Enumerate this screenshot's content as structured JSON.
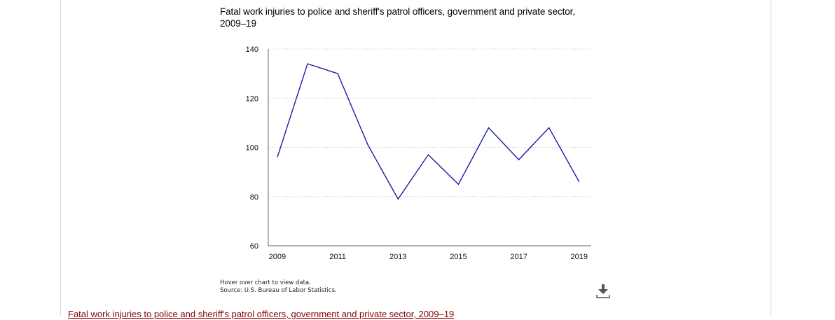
{
  "chart_data": {
    "type": "line",
    "title": "Fatal work injuries to police and sheriff's patrol officers, government and private sector, 2009–19",
    "xlabel": "",
    "ylabel": "",
    "x": [
      2009,
      2010,
      2011,
      2012,
      2013,
      2014,
      2015,
      2016,
      2017,
      2018,
      2019
    ],
    "x_tick_labels": [
      "2009",
      "2011",
      "2013",
      "2015",
      "2017",
      "2019"
    ],
    "y_tick_labels": [
      "140",
      "120",
      "100",
      "80",
      "60"
    ],
    "y_ticks": [
      140,
      120,
      100,
      80,
      60
    ],
    "ylim": [
      60,
      140
    ],
    "xlim": [
      2008.7,
      2019.4
    ],
    "grid": "horizontal dotted",
    "series": [
      {
        "values": [
          96,
          134,
          130,
          101,
          79,
          97,
          85,
          108,
          95,
          108,
          86
        ],
        "color": "#1a1aa6"
      }
    ]
  },
  "notes": {
    "hover": "Hover over chart to view data.",
    "source": "Source: U.S. Bureau of Labor Statistics."
  },
  "download": {
    "icon": "download-icon"
  },
  "bottom_link": {
    "text": "Fatal work injuries to police and sheriff's patrol officers, government and private sector, 2009–19"
  },
  "colors": {
    "line": "#1a1aa6",
    "grid": "#c8c8c8",
    "axis": "#666666",
    "link": "#8b0000",
    "icon": "#555555"
  }
}
